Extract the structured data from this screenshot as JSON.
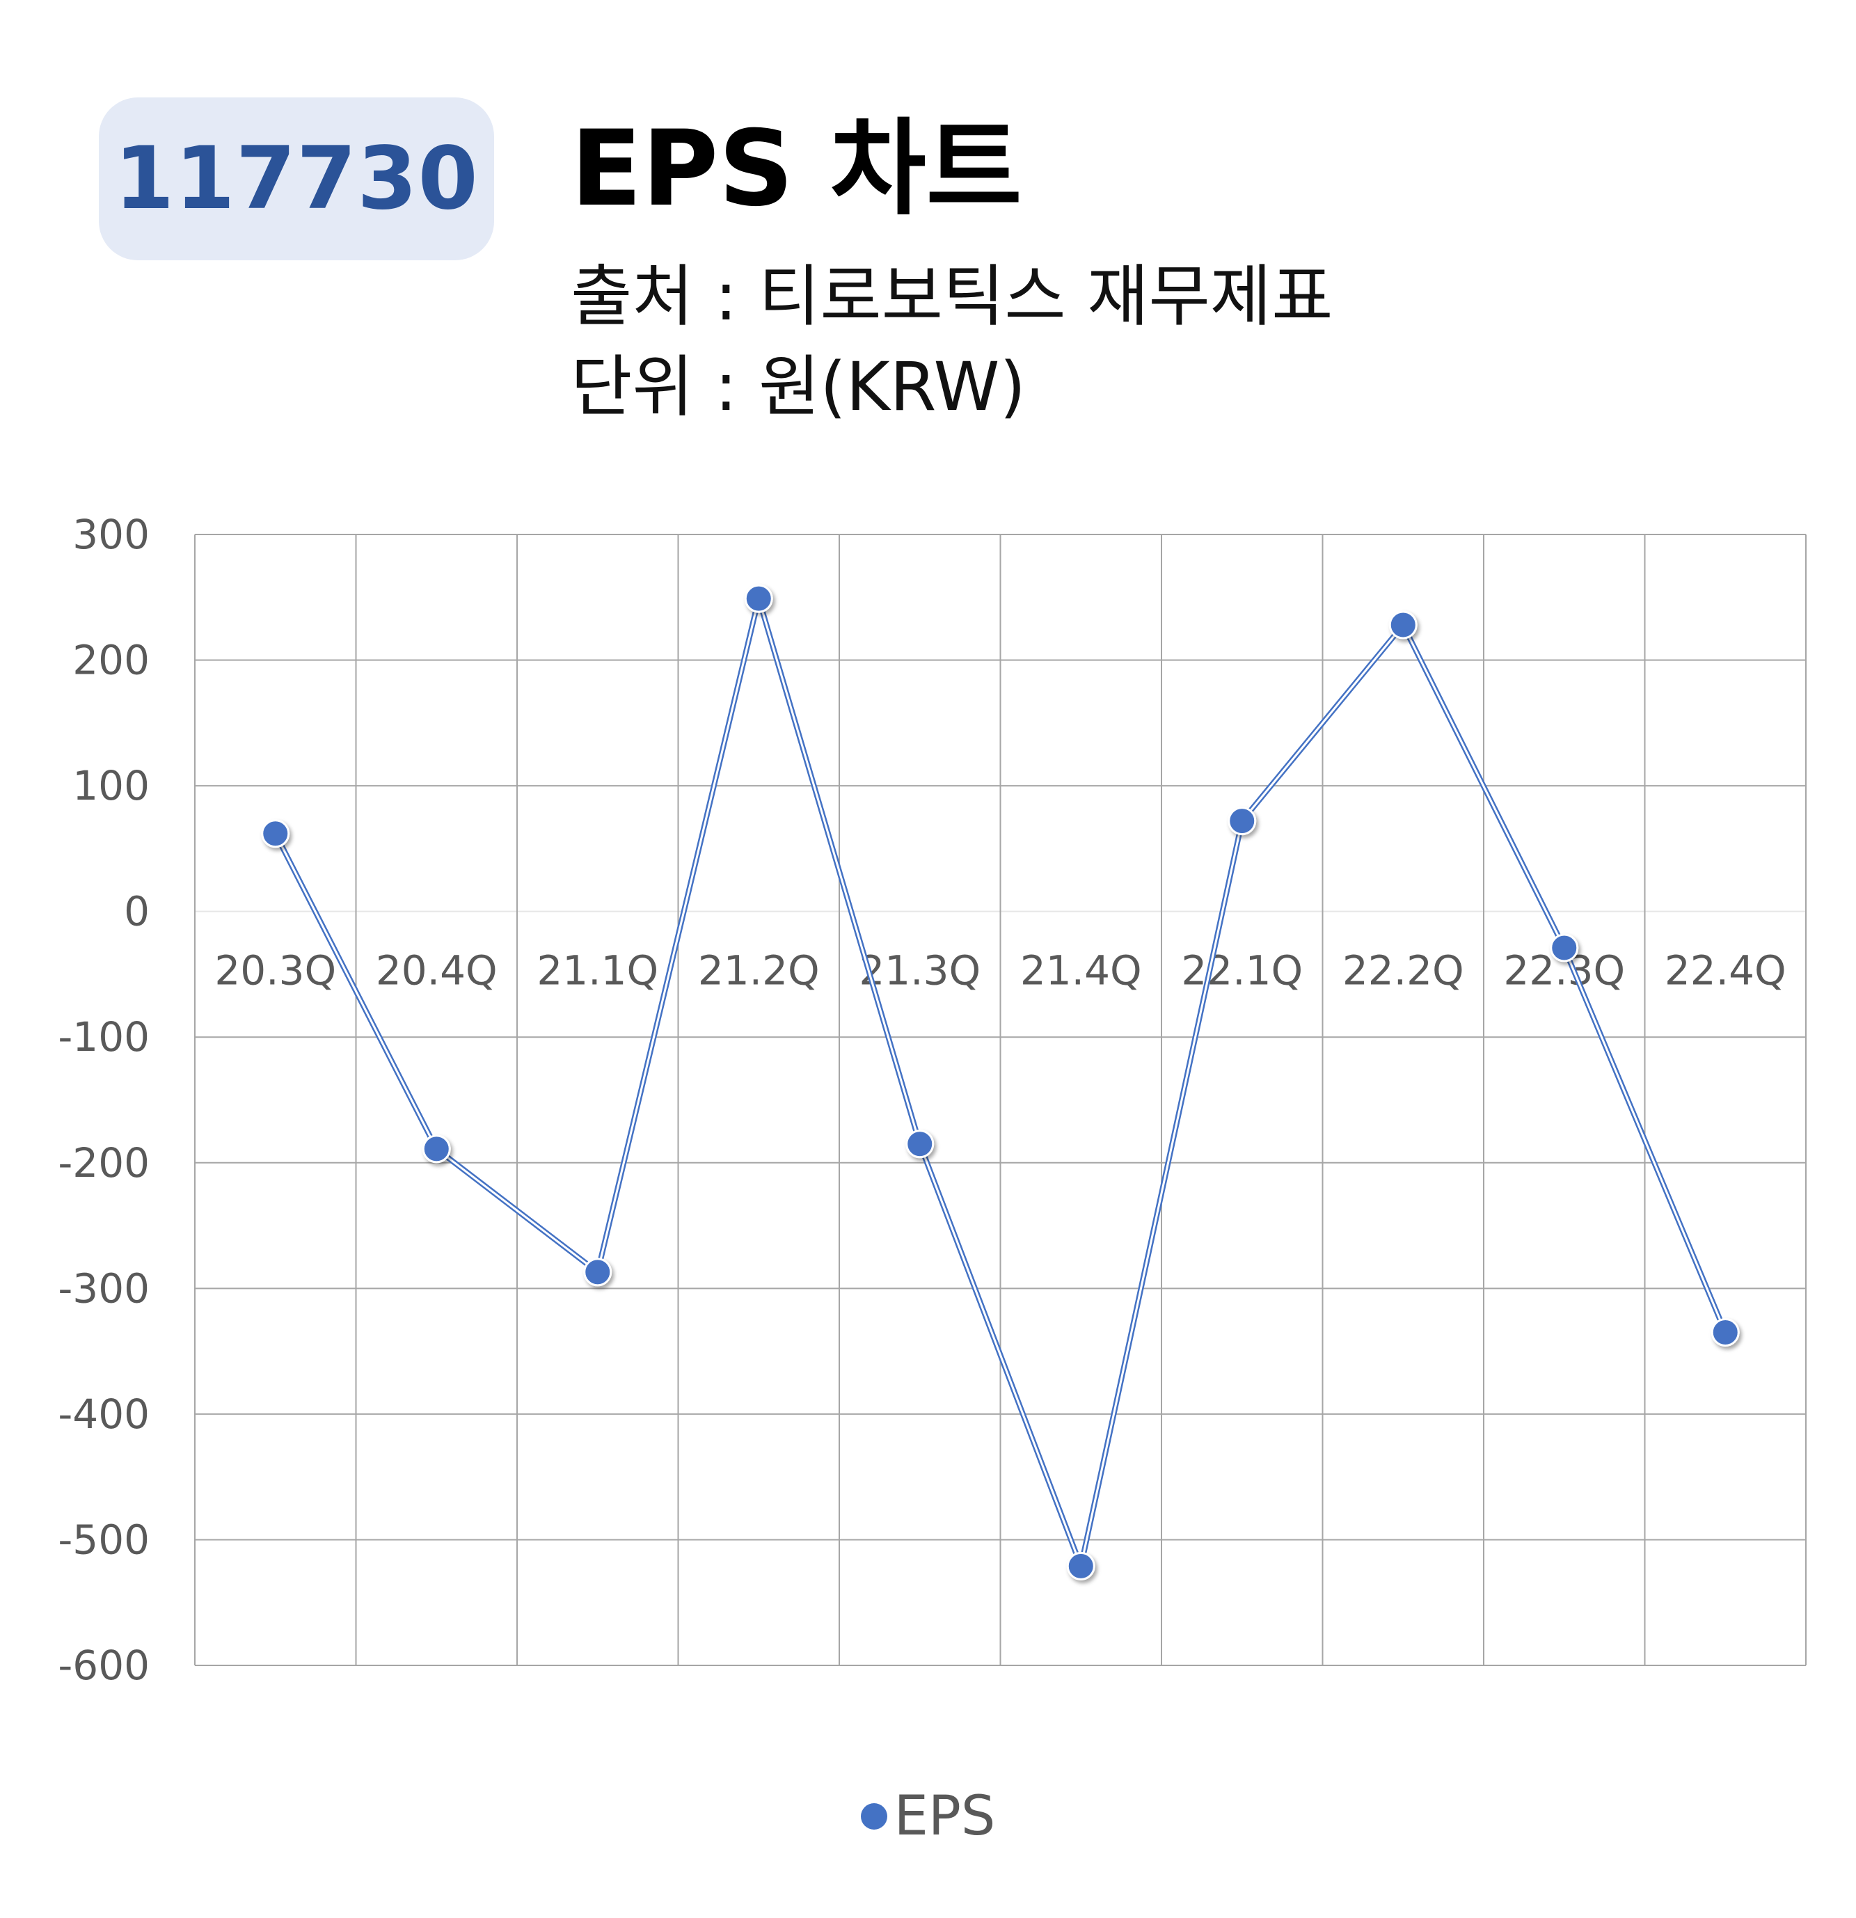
{
  "header": {
    "badge": "117730",
    "title": "EPS 차트",
    "source": "출처 : 티로보틱스 재무제표",
    "unit": "단위 : 원(KRW)"
  },
  "colors": {
    "series": "#4472c4",
    "badge_bg": "#e4eaf6",
    "badge_text": "#2b5398"
  },
  "chart_data": {
    "type": "line",
    "categories": [
      "20.3Q",
      "20.4Q",
      "21.1Q",
      "21.2Q",
      "21.3Q",
      "21.4Q",
      "22.1Q",
      "22.2Q",
      "22.3Q",
      "22.4Q"
    ],
    "series": [
      {
        "name": "EPS",
        "values": [
          62,
          -189,
          -287,
          249,
          -185,
          -521,
          72,
          228,
          -29,
          -335
        ]
      }
    ],
    "ylim": [
      -600,
      300
    ],
    "yticks": [
      "300",
      "200",
      "100",
      "0",
      "-100",
      "-200",
      "-300",
      "-400",
      "-500",
      "-600"
    ],
    "grid": true,
    "legend": "bottom"
  }
}
